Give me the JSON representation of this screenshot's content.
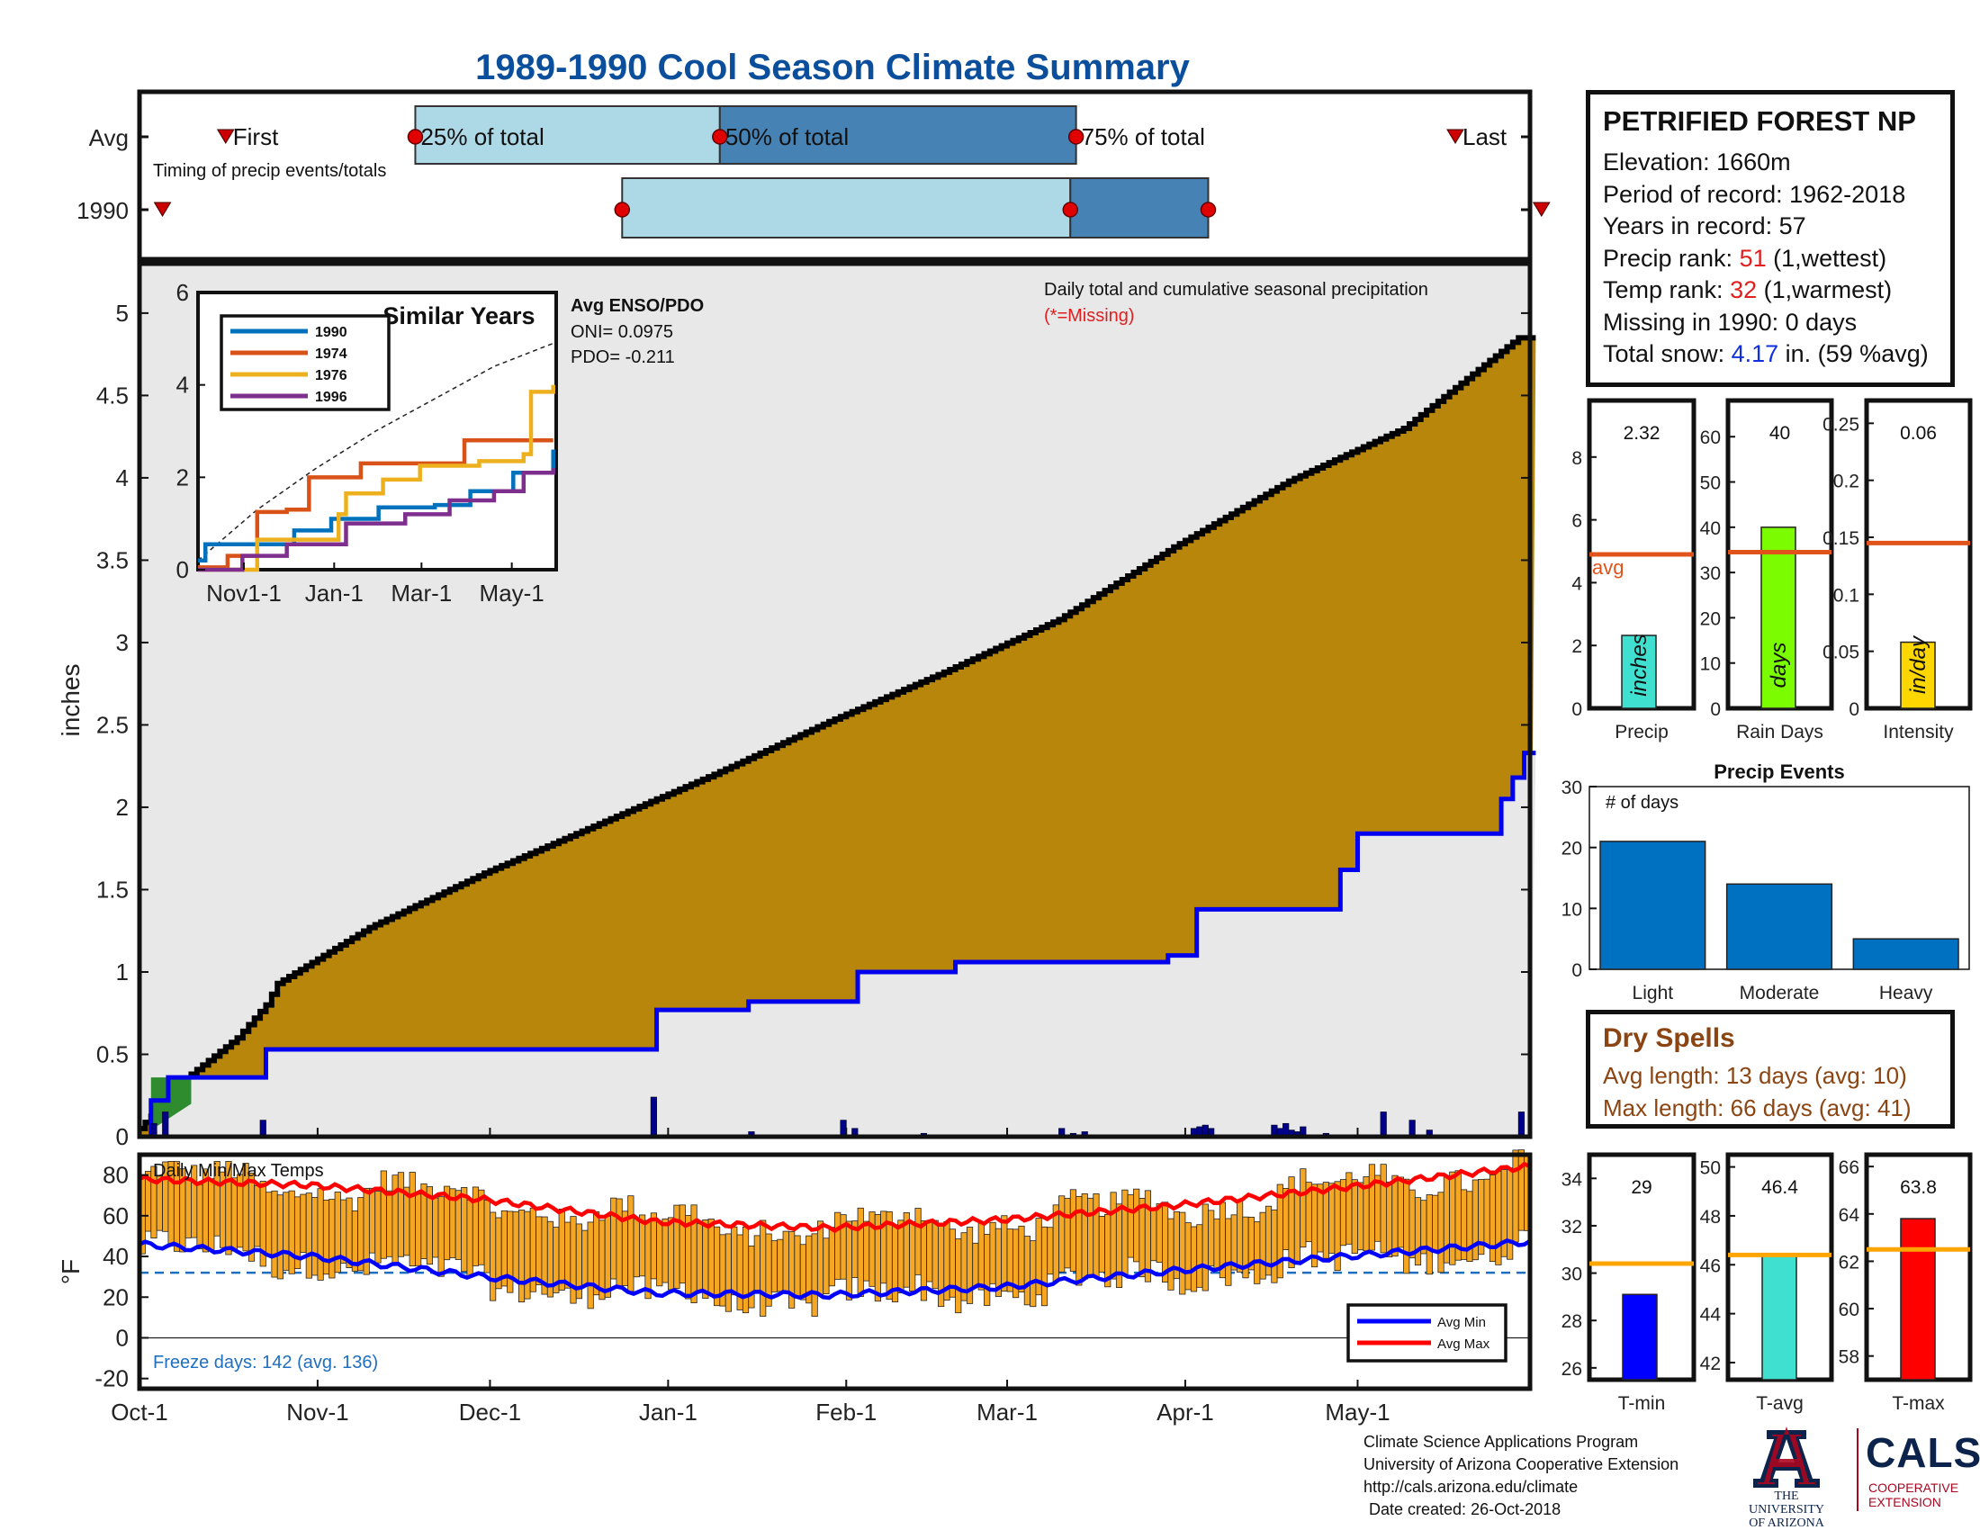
{
  "title": "1989-1990 Cool Season Climate Summary",
  "station": {
    "name": "PETRIFIED FOREST NP",
    "elevation": "Elevation: 1660m",
    "period": "Period of record: 1962-2018",
    "years": "Years in record: 57",
    "precip_rank_label": "Precip rank: ",
    "precip_rank": "51",
    "precip_rank_note": " (1,wettest)",
    "temp_rank_label": "Temp rank: ",
    "temp_rank": "32",
    "temp_rank_note": " (1,warmest)",
    "missing": "Missing in 1990: 0 days",
    "snow_label": "Total snow: ",
    "snow_value": "4.17",
    "snow_note": " in. (59 %avg)"
  },
  "dry_spells": {
    "title": "Dry Spells",
    "avg": "Avg length: 13 days (avg: 10)",
    "max": "Max length: 66 days (avg: 41)"
  },
  "credits": {
    "line1": "Climate Science Applications Program",
    "line2": "University of Arizona Cooperative Extension",
    "line3": "http://cals.arizona.edu/climate",
    "line4": "Date created: 26-Oct-2018"
  },
  "logo": {
    "ua_line1": "THE UNIVERSITY",
    "ua_line2": "OF ARIZONA",
    "cals": "CALS",
    "coop_line1": "COOPERATIVE",
    "coop_line2": "EXTENSION"
  },
  "colors": {
    "cumulative_fill": "#b8860b",
    "avg_fill": "#e8e8e8",
    "avg_line": "#0000ee",
    "light_blue": "#add8e6",
    "steel_blue": "#4682b4",
    "bar_blue": "#0070c0",
    "temp_bar": "#f5a623",
    "avg_ref": "#e0531a",
    "tmax": "#ff0000",
    "tmin": "#0000ff"
  },
  "chart_data": [
    {
      "id": "timing",
      "type": "timing",
      "rows": [
        "Avg",
        "1990"
      ],
      "annotation": "Timing of precip events/totals",
      "avg": {
        "first": "First",
        "last": "Last",
        "first_x": "Oct-16",
        "q25": "Nov-18",
        "q50": "Jan-10",
        "q75": "Mar-13",
        "last_x": "May-18",
        "q25_label": "25% of total",
        "q50_label": "50% of total",
        "q75_label": "75% of total"
      },
      "y1990": {
        "first_x": "Oct-5",
        "q25": "Dec-24",
        "q50": "Mar-12",
        "q75": "Apr-5",
        "last_x": "Jun-2"
      }
    },
    {
      "id": "cumulative",
      "type": "area",
      "ylabel": "inches",
      "ylim": [
        0,
        5.3
      ],
      "yticks": [
        "0",
        "0.5",
        "1",
        "1.5",
        "2",
        "2.5",
        "3",
        "3.5",
        "4",
        "4.5",
        "5"
      ],
      "xticks": [
        "Oct-1",
        "Nov-1",
        "Dec-1",
        "Jan-1",
        "Feb-1",
        "Mar-1",
        "Apr-1",
        "May-1"
      ],
      "annotation_title": "Daily total and cumulative seasonal precipitation",
      "annotation_missing": "(*=Missing)",
      "avg_cumulative": {
        "day": [
          0,
          9,
          17,
          22,
          24,
          40,
          60,
          80,
          100,
          120,
          140,
          160,
          180,
          200,
          220,
          240
        ],
        "value": [
          0.05,
          0.38,
          0.6,
          0.8,
          0.93,
          1.27,
          1.6,
          1.9,
          2.2,
          2.52,
          2.82,
          3.14,
          3.58,
          3.98,
          4.3,
          4.85
        ]
      },
      "y1990_cumulative": {
        "day": [
          0,
          2,
          5,
          20,
          22,
          89,
          90,
          106,
          125,
          142,
          179,
          184,
          197,
          209,
          212,
          220,
          237,
          239,
          241
        ],
        "value": [
          0.0,
          0.22,
          0.36,
          0.36,
          0.53,
          0.53,
          0.77,
          0.82,
          1.0,
          1.06,
          1.1,
          1.38,
          1.38,
          1.62,
          1.84,
          1.84,
          2.05,
          2.18,
          2.33
        ]
      },
      "daily_bars": {
        "day": [
          2,
          4,
          21,
          89,
          106,
          122,
          124,
          136,
          160,
          162,
          164,
          183,
          184,
          185,
          186,
          197,
          198,
          199,
          200,
          201,
          202,
          206,
          216,
          221,
          224,
          240
        ],
        "value": [
          0.08,
          0.15,
          0.1,
          0.24,
          0.03,
          0.1,
          0.05,
          0.02,
          0.05,
          0.02,
          0.03,
          0.05,
          0.06,
          0.07,
          0.05,
          0.07,
          0.05,
          0.08,
          0.04,
          0.03,
          0.06,
          0.02,
          0.15,
          0.1,
          0.04,
          0.15
        ]
      }
    },
    {
      "id": "similar_years",
      "type": "line",
      "title": "Similar Years",
      "ylim": [
        0,
        6
      ],
      "yticks": [
        "0",
        "2",
        "4",
        "6"
      ],
      "xticks": [
        "Nov1-1",
        "Jan-1",
        "Mar-1",
        "May-1"
      ],
      "enso_title": "Avg ENSO/PDO",
      "oni": "ONI= 0.0975",
      "pdo": "PDO= -0.211",
      "series": [
        {
          "name": "1990",
          "color": "#0072bd",
          "x": [
            0,
            5,
            35,
            65,
            90,
            122,
            160,
            184,
            213,
            240
          ],
          "y": [
            0.2,
            0.55,
            0.55,
            0.85,
            1.1,
            1.35,
            1.4,
            1.7,
            2.1,
            2.6
          ]
        },
        {
          "name": "1974",
          "color": "#d95319",
          "x": [
            0,
            20,
            40,
            60,
            75,
            110,
            140,
            180,
            240
          ],
          "y": [
            0.05,
            0.3,
            1.25,
            1.3,
            2.0,
            2.3,
            2.3,
            2.8,
            2.8
          ]
        },
        {
          "name": "1976",
          "color": "#edb120",
          "x": [
            0,
            35,
            40,
            95,
            100,
            125,
            150,
            190,
            220,
            225,
            240
          ],
          "y": [
            0.0,
            0.0,
            0.65,
            1.2,
            1.65,
            1.95,
            2.25,
            2.35,
            2.5,
            3.85,
            4.0
          ]
        },
        {
          "name": "1996",
          "color": "#7e2f8e",
          "x": [
            0,
            30,
            60,
            100,
            140,
            170,
            200,
            220,
            240
          ],
          "y": [
            0.0,
            0.3,
            0.55,
            1.0,
            1.2,
            1.5,
            1.7,
            2.1,
            2.2
          ]
        }
      ],
      "avg_dashed": {
        "x": [
          0,
          40,
          80,
          120,
          160,
          200,
          240
        ],
        "y": [
          0.2,
          1.3,
          2.2,
          3.0,
          3.7,
          4.4,
          4.9
        ]
      }
    },
    {
      "id": "temps",
      "type": "bar",
      "title": "Daily Min/Max Temps",
      "ylabel": "°F",
      "ylim": [
        -25,
        90
      ],
      "yticks": [
        "-20",
        "0",
        "20",
        "40",
        "60",
        "80"
      ],
      "freeze_line": 32,
      "freeze_text": "Freeze days: 142 (avg. 136)",
      "legend": [
        "Avg Min",
        "Avg Max"
      ],
      "avg_max": {
        "day": [
          0,
          30,
          60,
          90,
          120,
          150,
          180,
          210,
          241
        ],
        "value": [
          78,
          75,
          68,
          57,
          54,
          58,
          65,
          74,
          84
        ]
      },
      "avg_min": {
        "day": [
          0,
          30,
          60,
          90,
          120,
          150,
          180,
          210,
          241
        ],
        "value": [
          46,
          40,
          30,
          22,
          21,
          25,
          33,
          40,
          47
        ]
      }
    },
    {
      "id": "precip_total",
      "type": "bar",
      "xlabel": "Precip",
      "bar_label": "inches",
      "value": 2.32,
      "value_label": "2.32",
      "avg": 4.9,
      "avg_label": "avg",
      "ylim": [
        0,
        9.8
      ],
      "yticks": [
        "0",
        "2",
        "4",
        "6",
        "8"
      ]
    },
    {
      "id": "rain_days",
      "type": "bar",
      "xlabel": "Rain Days",
      "bar_label": "days",
      "value": 40,
      "value_label": "40",
      "avg": 34.5,
      "ylim": [
        0,
        68
      ],
      "yticks": [
        "0",
        "10",
        "20",
        "30",
        "40",
        "50",
        "60"
      ]
    },
    {
      "id": "intensity",
      "type": "bar",
      "xlabel": "Intensity",
      "bar_label": "in/day",
      "value": 0.058,
      "value_label": "0.06",
      "avg": 0.145,
      "ylim": [
        0,
        0.27
      ],
      "yticks": [
        "0",
        "0.05",
        "0.1",
        "0.15",
        "0.2",
        "0.25"
      ]
    },
    {
      "id": "precip_events",
      "type": "bar",
      "title": "Precip Events",
      "annotation": "# of days",
      "categories": [
        "Light",
        "Moderate",
        "Heavy"
      ],
      "values": [
        21,
        14,
        5
      ],
      "ylim": [
        0,
        30
      ],
      "yticks": [
        "0",
        "10",
        "20",
        "30"
      ]
    },
    {
      "id": "t_min",
      "type": "bar",
      "xlabel": "T-min",
      "value": 29.1,
      "value_label": "29",
      "avg": 30.4,
      "ylim": [
        25.5,
        35
      ],
      "yticks": [
        "26",
        "28",
        "30",
        "32",
        "34"
      ]
    },
    {
      "id": "t_avg",
      "type": "bar",
      "xlabel": "T-avg",
      "value": 46.4,
      "value_label": "46.4",
      "avg": 46.4,
      "ylim": [
        41.3,
        50.5
      ],
      "yticks": [
        "42",
        "44",
        "46",
        "48",
        "50"
      ]
    },
    {
      "id": "t_max",
      "type": "bar",
      "xlabel": "T-max",
      "value": 63.8,
      "value_label": "63.8",
      "avg": 62.5,
      "ylim": [
        57,
        66.5
      ],
      "yticks": [
        "58",
        "60",
        "62",
        "64",
        "66"
      ]
    }
  ]
}
